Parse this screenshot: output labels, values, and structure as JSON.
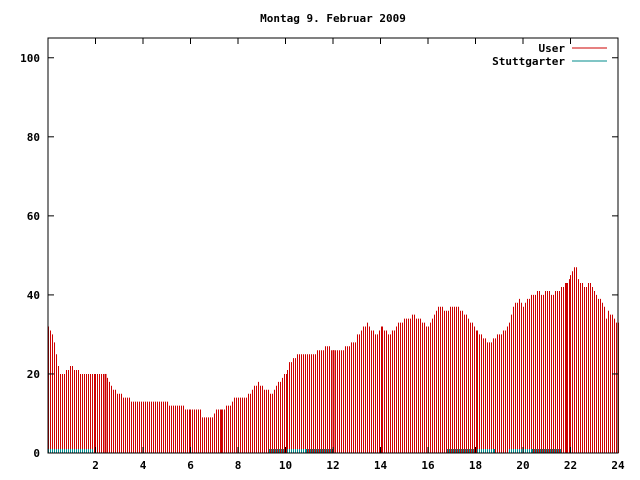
{
  "chart_data": {
    "type": "bar",
    "title": "Montag 9. Februar 2009",
    "xlabel": "",
    "ylabel": "",
    "xlim": [
      0,
      24
    ],
    "ylim": [
      0,
      105
    ],
    "x_ticks": [
      2,
      4,
      6,
      8,
      10,
      12,
      14,
      16,
      18,
      20,
      22,
      24
    ],
    "y_ticks": [
      0,
      20,
      40,
      60,
      80,
      100
    ],
    "grid": false,
    "legend_position": "top-right",
    "colors": {
      "user": "#cc0000",
      "stuttgarter": "#008b8b",
      "axis": "#000000"
    },
    "x_step_minutes": 5,
    "series": [
      {
        "name": "User",
        "key": "user",
        "anchors": [
          [
            0.0,
            32
          ],
          [
            0.1,
            31
          ],
          [
            0.2,
            29
          ],
          [
            0.3,
            26
          ],
          [
            0.4,
            22
          ],
          [
            0.5,
            20
          ],
          [
            0.7,
            20
          ],
          [
            0.9,
            22
          ],
          [
            1.1,
            21
          ],
          [
            1.4,
            20
          ],
          [
            2.4,
            20
          ],
          [
            2.6,
            18
          ],
          [
            2.8,
            16
          ],
          [
            3.0,
            15
          ],
          [
            3.3,
            14
          ],
          [
            3.6,
            13
          ],
          [
            5.0,
            13
          ],
          [
            5.1,
            12
          ],
          [
            5.6,
            12
          ],
          [
            5.8,
            11
          ],
          [
            6.4,
            11
          ],
          [
            6.5,
            9
          ],
          [
            6.9,
            9
          ],
          [
            7.0,
            10
          ],
          [
            7.1,
            11
          ],
          [
            7.4,
            11
          ],
          [
            7.5,
            12
          ],
          [
            7.7,
            12
          ],
          [
            7.8,
            14
          ],
          [
            8.3,
            14
          ],
          [
            8.5,
            15
          ],
          [
            8.7,
            17
          ],
          [
            8.8,
            18
          ],
          [
            9.0,
            17
          ],
          [
            9.1,
            16
          ],
          [
            9.4,
            15
          ],
          [
            9.6,
            17
          ],
          [
            9.8,
            19
          ],
          [
            10.0,
            20
          ],
          [
            10.2,
            23
          ],
          [
            10.5,
            25
          ],
          [
            11.2,
            25
          ],
          [
            11.4,
            26
          ],
          [
            11.8,
            27
          ],
          [
            12.0,
            26
          ],
          [
            12.4,
            26
          ],
          [
            12.6,
            27
          ],
          [
            12.9,
            28
          ],
          [
            13.0,
            30
          ],
          [
            13.2,
            31
          ],
          [
            13.4,
            33
          ],
          [
            13.6,
            31
          ],
          [
            13.8,
            30
          ],
          [
            14.0,
            32
          ],
          [
            14.2,
            31
          ],
          [
            14.4,
            30
          ],
          [
            14.6,
            31
          ],
          [
            14.8,
            33
          ],
          [
            15.2,
            34
          ],
          [
            15.4,
            35
          ],
          [
            15.8,
            33
          ],
          [
            16.0,
            32
          ],
          [
            16.2,
            34
          ],
          [
            16.4,
            37
          ],
          [
            16.8,
            36
          ],
          [
            17.0,
            37
          ],
          [
            17.2,
            37
          ],
          [
            17.4,
            36
          ],
          [
            17.6,
            35
          ],
          [
            17.8,
            33
          ],
          [
            18.0,
            31
          ],
          [
            18.2,
            30
          ],
          [
            18.4,
            29
          ],
          [
            18.6,
            28
          ],
          [
            18.8,
            29
          ],
          [
            19.0,
            30
          ],
          [
            19.2,
            31
          ],
          [
            19.4,
            33
          ],
          [
            19.6,
            37
          ],
          [
            19.8,
            39
          ],
          [
            20.0,
            37
          ],
          [
            20.2,
            39
          ],
          [
            20.4,
            40
          ],
          [
            20.6,
            41
          ],
          [
            20.8,
            40
          ],
          [
            21.0,
            41
          ],
          [
            21.2,
            40
          ],
          [
            21.4,
            41
          ],
          [
            21.6,
            42
          ],
          [
            21.8,
            43
          ],
          [
            22.0,
            45
          ],
          [
            22.1,
            46
          ],
          [
            22.2,
            48
          ],
          [
            22.3,
            45
          ],
          [
            22.4,
            43
          ],
          [
            22.6,
            42
          ],
          [
            22.8,
            43
          ],
          [
            23.0,
            41
          ],
          [
            23.2,
            39
          ],
          [
            23.4,
            38
          ],
          [
            23.5,
            34
          ],
          [
            23.6,
            36
          ],
          [
            23.8,
            34
          ],
          [
            24.0,
            33
          ]
        ]
      },
      {
        "name": "Stuttgarter",
        "key": "stuttgarter",
        "segments": [
          [
            0.0,
            1.9,
            1
          ],
          [
            9.3,
            12.0,
            1
          ],
          [
            16.8,
            18.8,
            1
          ],
          [
            19.4,
            21.6,
            1
          ]
        ]
      }
    ]
  }
}
